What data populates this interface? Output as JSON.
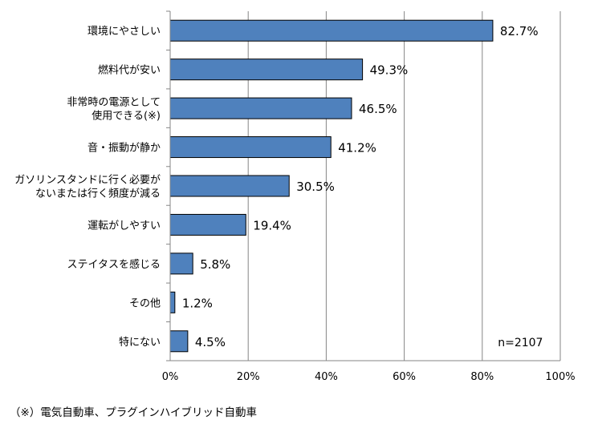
{
  "chart_data": {
    "type": "bar",
    "orientation": "horizontal",
    "categories": [
      [
        "環境にやさしい"
      ],
      [
        "燃料代が安い"
      ],
      [
        "非常時の電源として",
        "使用できる(※)"
      ],
      [
        "音・振動が静か"
      ],
      [
        "ガソリンスタンドに行く必要が",
        "ないまたは行く頻度が減る"
      ],
      [
        "運転がしやすい"
      ],
      [
        "ステイタスを感じる"
      ],
      [
        "その他"
      ],
      [
        "特にない"
      ]
    ],
    "values": [
      82.7,
      49.3,
      46.5,
      41.2,
      30.5,
      19.4,
      5.8,
      1.2,
      4.5
    ],
    "value_labels": [
      "82.7%",
      "49.3%",
      "46.5%",
      "41.2%",
      "30.5%",
      "19.4%",
      "5.8%",
      "1.2%",
      "4.5%"
    ],
    "xlim": [
      0,
      100
    ],
    "xticks": [
      0,
      20,
      40,
      60,
      80,
      100
    ],
    "xtick_labels": [
      "0%",
      "20%",
      "40%",
      "60%",
      "80%",
      "100%"
    ],
    "grid": "vertical",
    "bar_color": "#4f81bd",
    "bar_edge_color": "#000000",
    "n_label": "n=2107",
    "n_label_position": "bottom-right"
  },
  "footnote": "（※）電気自動車、プラグインハイブリッド自動車"
}
